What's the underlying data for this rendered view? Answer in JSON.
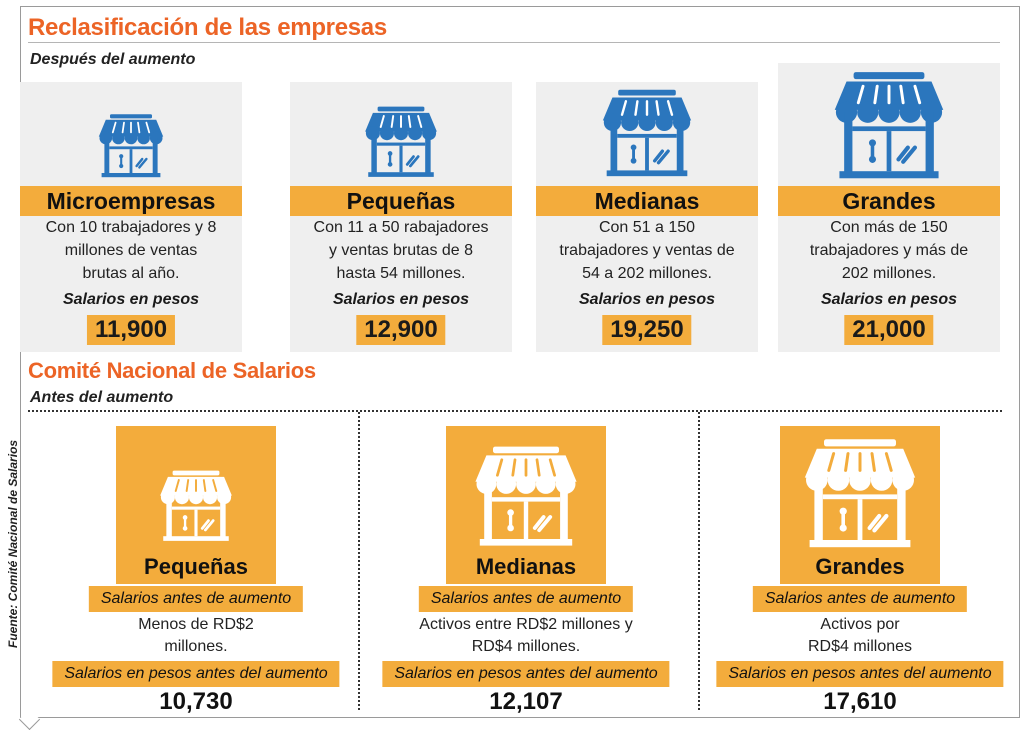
{
  "header": {
    "title": "Reclasificación  de las empresas",
    "subtitle": "Después del aumento"
  },
  "colors": {
    "orange_title": "#ec6426",
    "band": "#f3ac3c",
    "icon_blue": "#2b76bd",
    "card_bg": "#efefef"
  },
  "after": [
    {
      "category": "Microempresas",
      "desc_lines": [
        "Con 10 trabajadores  y 8",
        "millones de ventas",
        "brutas al año."
      ],
      "salary_label": "Salarios en pesos",
      "salary": "11,900",
      "icon": "store-icon"
    },
    {
      "category": "Pequeñas",
      "desc_lines": [
        "Con 11 a 50 rabajadores",
        "y ventas brutas de  8",
        "hasta 54 millones."
      ],
      "salary_label": "Salarios en pesos",
      "salary": "12,900",
      "icon": "store-icon"
    },
    {
      "category": "Medianas",
      "desc_lines": [
        "Con 51 a 150",
        "trabajadores y ventas de",
        "54 a 202 millones."
      ],
      "salary_label": "Salarios en pesos",
      "salary": "19,250",
      "icon": "store-icon"
    },
    {
      "category": "Grandes",
      "desc_lines": [
        "Con más de 150",
        "trabajadores y más de",
        "202 millones."
      ],
      "salary_label": "Salarios en pesos",
      "salary": "21,000",
      "icon": "store-icon"
    }
  ],
  "committee": {
    "title": "Comité Nacional de Salarios",
    "subtitle": "Antes del aumento"
  },
  "before": [
    {
      "category": "Pequeñas",
      "label1": "Salarios antes de aumento",
      "desc_lines": [
        "Menos de RD$2",
        "millones."
      ],
      "label2": "Salarios en pesos antes del aumento",
      "salary": "10,730"
    },
    {
      "category": "Medianas",
      "label1": "Salarios antes de aumento",
      "desc_lines": [
        "Activos entre RD$2 millones y",
        "RD$4 millones."
      ],
      "label2": "Salarios en pesos antes del aumento",
      "salary": "12,107"
    },
    {
      "category": "Grandes",
      "label1": "Salarios antes de aumento",
      "desc_lines": [
        "Activos por",
        "RD$4 millones"
      ],
      "label2": "Salarios en pesos antes del aumento",
      "salary": "17,610"
    }
  ],
  "source": "Fuente: Comité Nacional de Salarios"
}
